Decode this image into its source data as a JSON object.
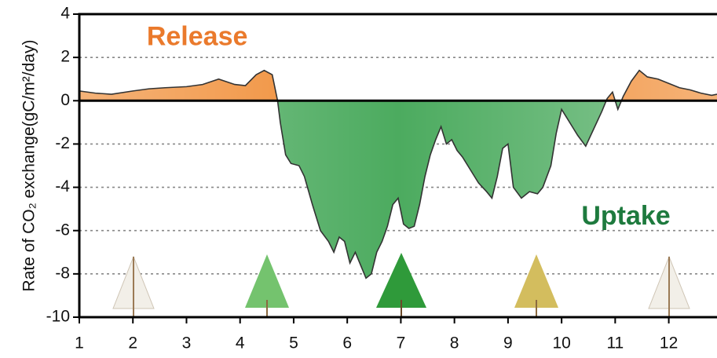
{
  "chart_data": {
    "type": "area",
    "y_label": "Rate of CO₂ exchange(gC/m²/day)",
    "annotations": [
      {
        "text": "Release",
        "x": 3.2,
        "y": 2.9,
        "color": "#ea7a2c"
      },
      {
        "text": "Uptake",
        "x": 11.2,
        "y": -5.4,
        "color": "#1e7a3e"
      }
    ],
    "positive_color": "#f08a30",
    "negative_color": "#4cab5f",
    "line_color": "#333333",
    "x": [
      1.0,
      1.3,
      1.6,
      2.0,
      2.3,
      2.6,
      3.0,
      3.3,
      3.6,
      3.9,
      4.1,
      4.3,
      4.45,
      4.6,
      4.7,
      4.75,
      4.85,
      4.95,
      5.1,
      5.2,
      5.35,
      5.5,
      5.65,
      5.75,
      5.85,
      5.95,
      6.05,
      6.15,
      6.25,
      6.35,
      6.45,
      6.55,
      6.65,
      6.75,
      6.85,
      6.95,
      7.05,
      7.15,
      7.25,
      7.35,
      7.45,
      7.55,
      7.65,
      7.75,
      7.85,
      7.95,
      8.05,
      8.15,
      8.3,
      8.45,
      8.6,
      8.7,
      8.8,
      8.9,
      9.0,
      9.1,
      9.25,
      9.4,
      9.55,
      9.65,
      9.8,
      9.9,
      10.0,
      10.1,
      10.2,
      10.3,
      10.45,
      10.6,
      10.75,
      10.85,
      10.95,
      11.05,
      11.15,
      11.3,
      11.45,
      11.6,
      11.8,
      12.0,
      12.2,
      12.4,
      12.6,
      12.8,
      12.9
    ],
    "values": [
      0.45,
      0.35,
      0.3,
      0.45,
      0.55,
      0.6,
      0.65,
      0.75,
      1.0,
      0.75,
      0.7,
      1.2,
      1.4,
      1.2,
      0.0,
      -1.0,
      -2.5,
      -2.9,
      -3.0,
      -3.5,
      -4.8,
      -6.0,
      -6.5,
      -7.0,
      -6.3,
      -6.5,
      -7.5,
      -7.0,
      -7.6,
      -8.2,
      -8.0,
      -7.0,
      -6.5,
      -5.8,
      -4.8,
      -4.5,
      -5.7,
      -5.9,
      -5.8,
      -4.8,
      -3.5,
      -2.5,
      -1.8,
      -1.2,
      -2.0,
      -1.8,
      -2.3,
      -2.6,
      -3.2,
      -3.8,
      -4.2,
      -4.5,
      -3.5,
      -2.2,
      -2.0,
      -4.0,
      -4.5,
      -4.2,
      -4.3,
      -4.0,
      -3.0,
      -1.5,
      -0.4,
      -0.8,
      -1.2,
      -1.6,
      -2.1,
      -1.3,
      -0.5,
      0.1,
      0.4,
      -0.4,
      0.2,
      0.9,
      1.4,
      1.1,
      1.0,
      0.8,
      0.6,
      0.5,
      0.35,
      0.25,
      0.3
    ],
    "xlim": [
      1,
      12.9
    ],
    "xticks": [
      1,
      2,
      3,
      4,
      5,
      6,
      7,
      8,
      9,
      10,
      11,
      12
    ],
    "ylim": [
      -10,
      4
    ],
    "yticks": [
      4,
      2,
      0,
      -2,
      -4,
      -6,
      -8,
      -10
    ],
    "grid": true
  }
}
